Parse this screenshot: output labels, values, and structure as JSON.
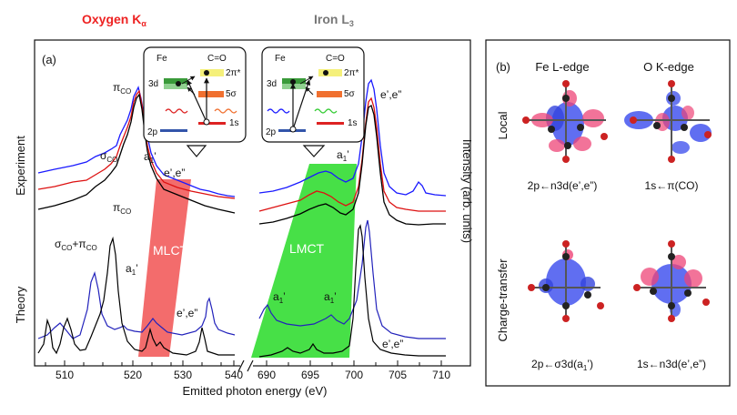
{
  "figure": {
    "panel_a_label": "(a)",
    "panel_b_label": "(b)",
    "titles": {
      "oxygen": "Oxygen K",
      "oxygen_sub": "α",
      "iron": "Iron L",
      "iron_sub": "3"
    },
    "y_left_experiment": "Experiment",
    "y_left_theory": "Theory",
    "y_right": "Intensity (arb. units)",
    "x_label": "Emitted photon energy (eV)",
    "ticks_left": [
      "510",
      "520",
      "530",
      "540"
    ],
    "ticks_right": [
      "690",
      "695",
      "700",
      "705",
      "710"
    ],
    "bands": {
      "mlct": "MLCT",
      "lmct": "LMCT"
    },
    "peak_labels": {
      "pi_exp": "π",
      "pi_exp_sub": "CO",
      "sigma_exp": "σ",
      "sigma_exp_sub": "CO",
      "a1_exp": "a",
      "a1_exp_sub": "1",
      "a1_exp_prime": "’",
      "ee_exp": "e’,e”",
      "pi_th": "π",
      "pi_th_sub": "CO",
      "sigpi_th_sigma": "σ",
      "sigpi_th_sub1": "CO",
      "sigpi_th_plus": "+π",
      "sigpi_th_sub2": "CO",
      "a1_th": "a",
      "a1_th_sub": "1",
      "a1_th_prime": "’",
      "ee_th": "e’,e”",
      "fe_ee_exp": "e’,e”",
      "fe_a1_exp": "a",
      "fe_a1_exp_sub": "1",
      "fe_a1_exp_prime": "’",
      "fe_a1_th_1": "a",
      "fe_a1_th_1_sub": "1",
      "fe_a1_th_1_prime": "’",
      "fe_a1_th_2": "a",
      "fe_a1_th_2_sub": "1",
      "fe_a1_th_2_prime": "’",
      "fe_ee_th": "e’,e”"
    },
    "inset_left": {
      "fe": "Fe",
      "co": "C=O",
      "l3d": "3d",
      "l2pi": "2π*",
      "l5s": "5σ",
      "l2p": "2p",
      "l1s": "1s"
    },
    "inset_right": {
      "fe": "Fe",
      "co": "C=O",
      "l3d": "3d",
      "l2pi": "2π*",
      "l5s": "5σ",
      "l2p": "2p",
      "l1s": "1s"
    },
    "panel_b": {
      "col_fe": "Fe L-edge",
      "col_o": "O K-edge",
      "row_local": "Local",
      "row_ct": "Charge-transfer",
      "cap_local_fe": "2p←n3d(e’,e”)",
      "cap_local_o": "1s←π(CO)",
      "cap_ct_fe": "2p←σ3d(a",
      "cap_ct_fe_sub": "1",
      "cap_ct_fe_end": "’)",
      "cap_ct_o": "1s←n3d(e’,e”)"
    },
    "colors": {
      "experiment_blue": "#1a1aff",
      "experiment_red": "#dd1111",
      "experiment_black": "#000000",
      "mlct": "#f25c5c",
      "lmct": "#33dd33",
      "title_red": "#ee2222",
      "title_gray": "#777777"
    }
  }
}
